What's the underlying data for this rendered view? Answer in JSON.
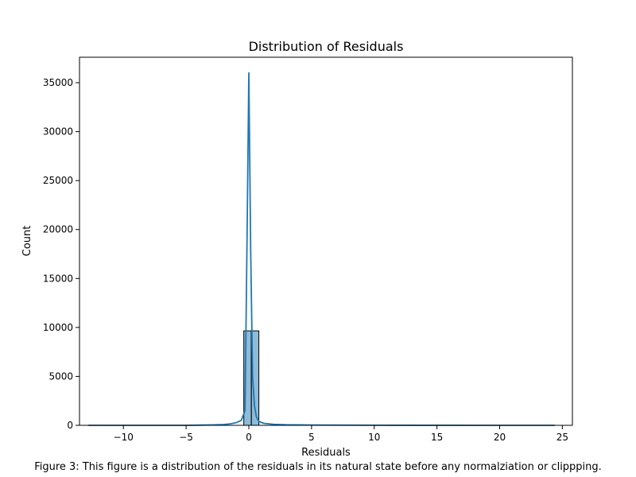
{
  "chart_data": {
    "type": "bar",
    "title": "Distribution of Residuals",
    "xlabel": "Residuals",
    "ylabel": "Count",
    "xlim": [
      -13.5,
      25.8
    ],
    "ylim": [
      0,
      37600
    ],
    "xticks": [
      -10,
      -5,
      0,
      5,
      10,
      15,
      20,
      25
    ],
    "yticks": [
      0,
      5000,
      10000,
      15000,
      20000,
      25000,
      30000,
      35000
    ],
    "bars": [
      {
        "x0": -0.4,
        "x1": 0.2,
        "value": 9650
      },
      {
        "x0": 0.2,
        "x1": 0.8,
        "value": 9650
      }
    ],
    "kde": {
      "x": [
        -12.8,
        -8,
        -5,
        -3,
        -2,
        -1.5,
        -1,
        -0.6,
        -0.3,
        -0.15,
        0,
        0.15,
        0.3,
        0.45,
        0.6,
        0.8,
        1.2,
        2,
        3,
        5,
        10,
        24.4
      ],
      "y": [
        0,
        0,
        0,
        40,
        80,
        150,
        280,
        500,
        1500,
        18000,
        36000,
        18000,
        5000,
        2000,
        900,
        400,
        200,
        100,
        60,
        30,
        10,
        0
      ]
    },
    "caption": "Figure 3: This figure is a distribution of the residuals in its natural state before any normalziation or clippping.",
    "colors": {
      "bar_fill": "#1f77b4",
      "bar_edge": "#000000",
      "kde_line": "#1f77b4"
    },
    "grid": false,
    "legend": "none"
  }
}
